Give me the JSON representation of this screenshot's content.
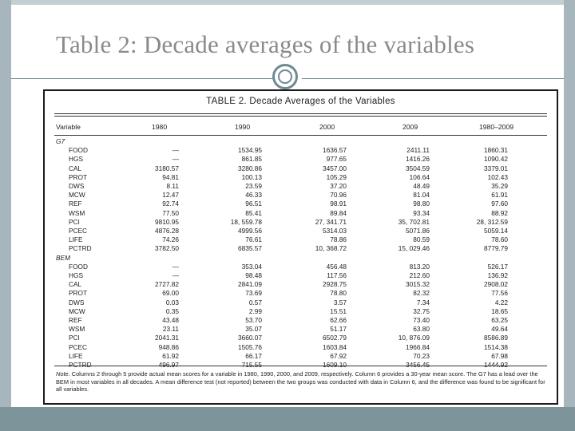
{
  "slide": {
    "title": "Table 2: Decade averages of the variables"
  },
  "table": {
    "title": "TABLE 2. Decade Averages of the Variables",
    "headers": [
      "Variable",
      "1980",
      "1990",
      "2000",
      "2009",
      "1980–2009"
    ],
    "groups": [
      {
        "name": "G7",
        "rows": [
          [
            "FOOD",
            "—",
            "1534.95",
            "1636.57",
            "2411.11",
            "1860.31"
          ],
          [
            "HGS",
            "—",
            "861.85",
            "977.65",
            "1416.26",
            "1090.42"
          ],
          [
            "CAL",
            "3180.57",
            "3280.86",
            "3457.00",
            "3504.59",
            "3379.01"
          ],
          [
            "PROT",
            "94.81",
            "100.13",
            "105.29",
            "106.64",
            "102.43"
          ],
          [
            "DWS",
            "8.11",
            "23.59",
            "37.20",
            "48.49",
            "35.29"
          ],
          [
            "MCW",
            "12.47",
            "46.33",
            "70.96",
            "81.04",
            "61.91"
          ],
          [
            "REF",
            "92.74",
            "96.51",
            "98.91",
            "98.80",
            "97.60"
          ],
          [
            "WSM",
            "77.50",
            "85.41",
            "89.84",
            "93.34",
            "88.92"
          ],
          [
            "PCI",
            "9810.95",
            "18, 559.78",
            "27, 341.71",
            "35, 702.81",
            "28, 312.59"
          ],
          [
            "PCEC",
            "4876.28",
            "4999.56",
            "5314.03",
            "5071.86",
            "5059.14"
          ],
          [
            "LIFE",
            "74.26",
            "76.61",
            "78.86",
            "80.59",
            "78.60"
          ],
          [
            "PCTRD",
            "3782.50",
            "6835.57",
            "10, 368.72",
            "15, 029.46",
            "8779.79"
          ]
        ]
      },
      {
        "name": "BEM",
        "rows": [
          [
            "FOOD",
            "—",
            "353.04",
            "456.48",
            "813.20",
            "526.17"
          ],
          [
            "HGS",
            "—",
            "98.48",
            "117.56",
            "212.60",
            "136.92"
          ],
          [
            "CAL",
            "2727.82",
            "2841.09",
            "2928.75",
            "3015.32",
            "2908.02"
          ],
          [
            "PROT",
            "69.00",
            "73.69",
            "78.80",
            "82.32",
            "77.56"
          ],
          [
            "DWS",
            "0.03",
            "0.57",
            "3.57",
            "7.34",
            "4.22"
          ],
          [
            "MCW",
            "0.35",
            "2.99",
            "15.51",
            "32.75",
            "18.65"
          ],
          [
            "REF",
            "43.48",
            "53.70",
            "62.66",
            "73.40",
            "63.25"
          ],
          [
            "WSM",
            "23.11",
            "35.07",
            "51.17",
            "63.80",
            "49.64"
          ],
          [
            "PCI",
            "2041.31",
            "3660.07",
            "6502.79",
            "10, 876.09",
            "8586.89"
          ],
          [
            "PCEC",
            "948.86",
            "1505.76",
            "1603.84",
            "1966.84",
            "1514.38"
          ],
          [
            "LIFE",
            "61.92",
            "66.17",
            "67.92",
            "70.23",
            "67.98"
          ],
          [
            "PCTRD",
            "496.97",
            "715.55",
            "1609.10",
            "3456.45",
            "1444.92"
          ]
        ]
      }
    ],
    "note_label": "Note.",
    "note_text": "Columns 2 through 5 provide actual mean scores for a variable in 1980, 1990, 2000, and 2009, respectively. Column 6 provides a 30-year mean score. The G7 has a lead over the BEM in most variables in all decades. A mean difference test (not reported) between the two groups was conducted with data in Column 6, and the difference was found to be significant for all variables."
  }
}
